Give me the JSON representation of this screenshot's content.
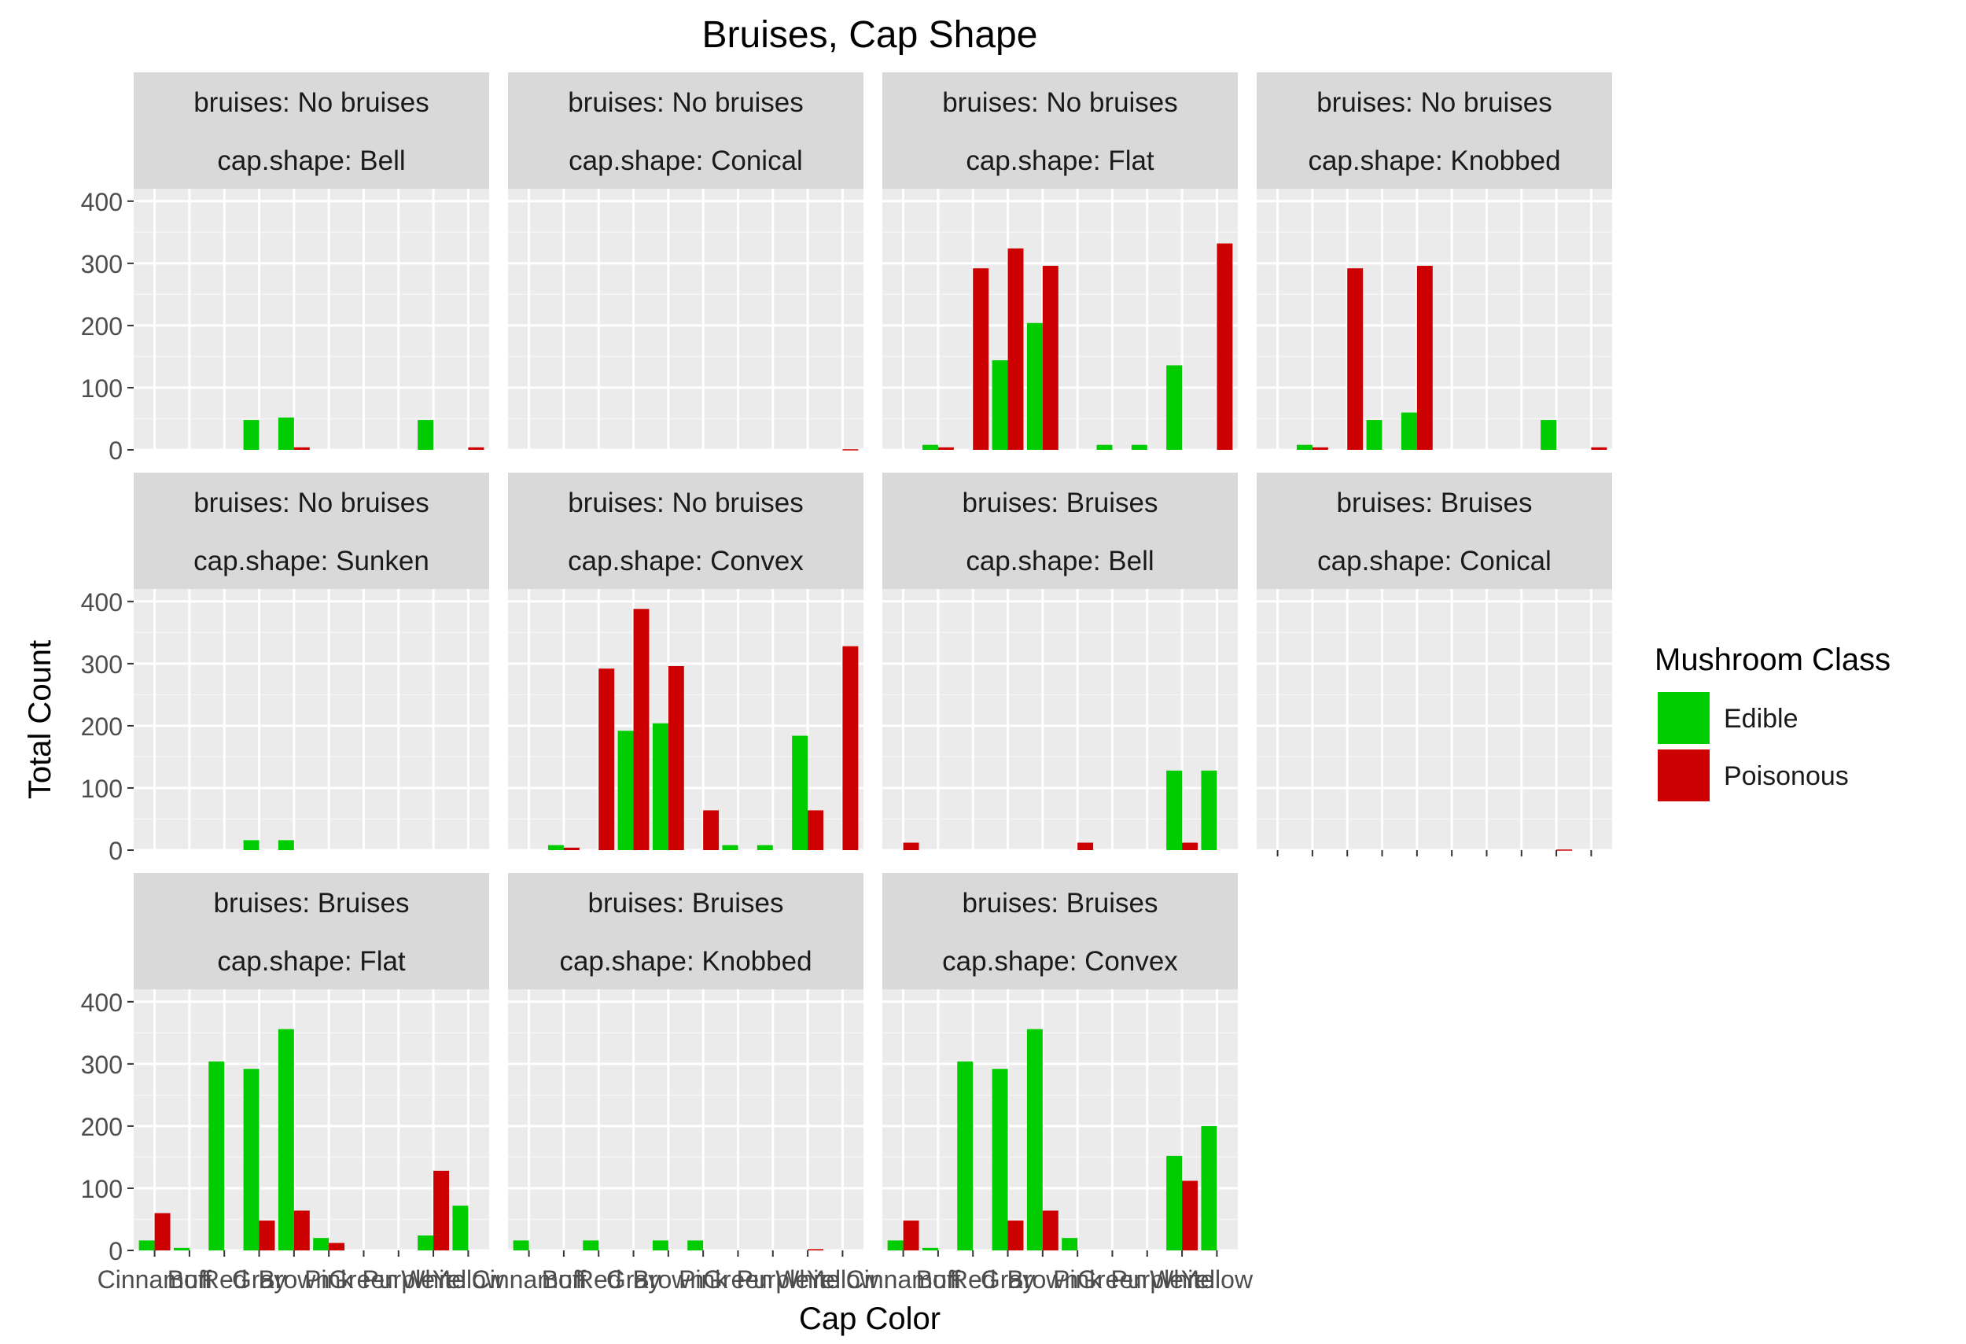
{
  "chart_data": {
    "type": "bar",
    "title": "Bruises, Cap Shape",
    "xlabel": "Cap Color",
    "ylabel": "Total Count",
    "ylim": [
      0,
      420
    ],
    "yticks": [
      0,
      100,
      200,
      300,
      400
    ],
    "grid": true,
    "legend": {
      "title": "Mushroom Class",
      "placement": "right",
      "entries": [
        {
          "name": "Edible",
          "color": "#00cc00"
        },
        {
          "name": "Poisonous",
          "color": "#cc0000"
        }
      ]
    },
    "categories": [
      "Cinnamon",
      "Buff",
      "Red",
      "Gray",
      "Brown",
      "Pink",
      "Green",
      "Purple",
      "White",
      "Yellow"
    ],
    "facet_strip_lines": [
      [
        "bruises: No bruises",
        "cap.shape: Bell"
      ],
      [
        "bruises: No bruises",
        "cap.shape: Conical"
      ],
      [
        "bruises: No bruises",
        "cap.shape: Flat"
      ],
      [
        "bruises: No bruises",
        "cap.shape: Knobbed"
      ],
      [
        "bruises: No bruises",
        "cap.shape: Sunken"
      ],
      [
        "bruises: No bruises",
        "cap.shape: Convex"
      ],
      [
        "bruises: Bruises",
        "cap.shape: Bell"
      ],
      [
        "bruises: Bruises",
        "cap.shape: Conical"
      ],
      [
        "bruises: Bruises",
        "cap.shape: Flat"
      ],
      [
        "bruises: Bruises",
        "cap.shape: Knobbed"
      ],
      [
        "bruises: Bruises",
        "cap.shape: Convex"
      ]
    ],
    "facet_values": [
      {
        "edible": [
          0,
          0,
          0,
          48,
          52,
          0,
          0,
          0,
          48,
          0
        ],
        "poisonous": [
          0,
          0,
          0,
          0,
          4,
          0,
          0,
          0,
          0,
          4
        ]
      },
      {
        "edible": [
          0,
          0,
          0,
          0,
          0,
          0,
          0,
          0,
          0,
          0
        ],
        "poisonous": [
          0,
          0,
          0,
          0,
          0,
          0,
          0,
          0,
          0,
          1
        ]
      },
      {
        "edible": [
          0,
          8,
          0,
          144,
          204,
          0,
          8,
          8,
          136,
          0
        ],
        "poisonous": [
          0,
          4,
          292,
          324,
          296,
          0,
          0,
          0,
          0,
          332
        ]
      },
      {
        "edible": [
          0,
          8,
          0,
          48,
          60,
          0,
          0,
          0,
          48,
          0
        ],
        "poisonous": [
          0,
          4,
          292,
          0,
          296,
          0,
          0,
          0,
          0,
          4
        ]
      },
      {
        "edible": [
          0,
          0,
          0,
          16,
          16,
          0,
          0,
          0,
          0,
          0
        ],
        "poisonous": [
          0,
          0,
          0,
          0,
          0,
          0,
          0,
          0,
          0,
          0
        ]
      },
      {
        "edible": [
          0,
          8,
          0,
          192,
          204,
          0,
          8,
          8,
          184,
          0
        ],
        "poisonous": [
          0,
          4,
          292,
          388,
          296,
          64,
          0,
          0,
          64,
          328
        ]
      },
      {
        "edible": [
          0,
          0,
          0,
          0,
          0,
          0,
          0,
          0,
          128,
          128
        ],
        "poisonous": [
          12,
          0,
          0,
          0,
          0,
          12,
          0,
          0,
          12,
          0
        ]
      },
      {
        "edible": [
          0,
          0,
          0,
          0,
          0,
          0,
          0,
          0,
          0,
          0
        ],
        "poisonous": [
          0,
          0,
          0,
          0,
          0,
          0,
          0,
          0,
          1,
          0
        ]
      },
      {
        "edible": [
          16,
          4,
          304,
          292,
          356,
          20,
          0,
          0,
          24,
          72
        ],
        "poisonous": [
          60,
          0,
          0,
          48,
          64,
          12,
          0,
          0,
          128,
          0
        ]
      },
      {
        "edible": [
          16,
          0,
          16,
          0,
          16,
          16,
          0,
          0,
          0,
          0
        ],
        "poisonous": [
          0,
          0,
          0,
          0,
          0,
          0,
          0,
          0,
          2,
          0
        ]
      },
      {
        "edible": [
          16,
          4,
          304,
          292,
          356,
          20,
          0,
          0,
          152,
          200
        ],
        "poisonous": [
          48,
          0,
          0,
          48,
          64,
          0,
          0,
          0,
          112,
          0
        ]
      }
    ]
  }
}
